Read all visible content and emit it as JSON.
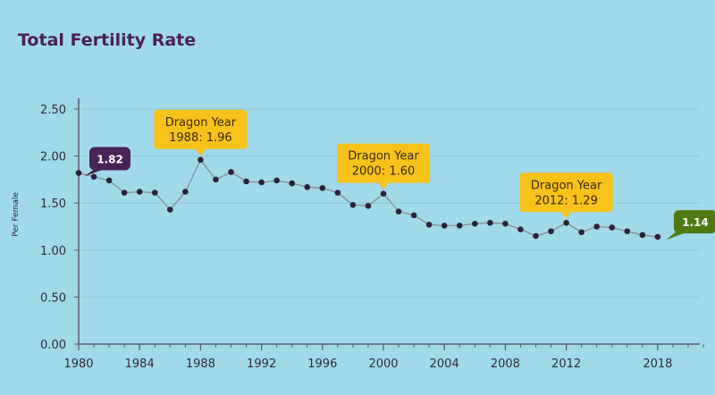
{
  "colors": {
    "background": "#a0d9e8",
    "title": "#4a2257",
    "line": "#8a8a9a",
    "point": "#2a2338",
    "axis": "#5a5a6a",
    "grid": "#8fc8d8",
    "callout": "#f7c21a",
    "start_label": "#4a2257",
    "end_label": "#4f7a12"
  },
  "chart_data": {
    "type": "line",
    "title": "Total Fertility Rate",
    "xlabel": "",
    "ylabel": "Per Female",
    "xlim": [
      1980,
      2021
    ],
    "ylim": [
      0,
      2.5
    ],
    "grid": true,
    "x_ticks": [
      "1980",
      "1984",
      "1988",
      "1992",
      "1996",
      "2000",
      "2004",
      "2008",
      "2012",
      "2018"
    ],
    "y_ticks": [
      "0.00",
      "0.50",
      "1.00",
      "1.50",
      "2.00",
      "2.50"
    ],
    "series": [
      {
        "name": "Total Fertility Rate",
        "x": [
          1980,
          1981,
          1982,
          1983,
          1984,
          1985,
          1986,
          1987,
          1988,
          1989,
          1990,
          1991,
          1992,
          1993,
          1994,
          1995,
          1996,
          1997,
          1998,
          1999,
          2000,
          2001,
          2002,
          2003,
          2004,
          2005,
          2006,
          2007,
          2008,
          2009,
          2010,
          2011,
          2012,
          2013,
          2014,
          2015,
          2016,
          2017,
          2018
        ],
        "values": [
          1.82,
          1.78,
          1.74,
          1.61,
          1.62,
          1.61,
          1.43,
          1.62,
          1.96,
          1.75,
          1.83,
          1.73,
          1.72,
          1.74,
          1.71,
          1.67,
          1.66,
          1.61,
          1.48,
          1.47,
          1.6,
          1.41,
          1.37,
          1.27,
          1.26,
          1.26,
          1.28,
          1.29,
          1.28,
          1.22,
          1.15,
          1.2,
          1.29,
          1.19,
          1.25,
          1.24,
          1.2,
          1.16,
          1.14
        ]
      }
    ],
    "annotations": [
      {
        "x": 1988,
        "y": 1.96,
        "line1": "Dragon Year",
        "line2": "1988: 1.96"
      },
      {
        "x": 2000,
        "y": 1.6,
        "line1": "Dragon Year",
        "line2": "2000: 1.60"
      },
      {
        "x": 2012,
        "y": 1.29,
        "line1": "Dragon Year",
        "line2": "2012: 1.29"
      }
    ],
    "start_label": {
      "x": 1980,
      "y": 1.82,
      "text": "1.82"
    },
    "end_label": {
      "x": 2018,
      "y": 1.14,
      "text": "1.14"
    }
  }
}
